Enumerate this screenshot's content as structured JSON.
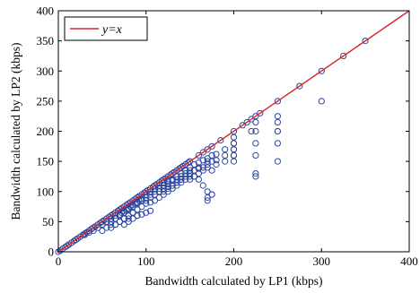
{
  "chart_data": {
    "type": "scatter",
    "title": "",
    "xlabel": "Bandwidth calculated by LP1 (kbps)",
    "ylabel": "Bandwidth calculated by LP2 (kbps)",
    "xlim": [
      0,
      400
    ],
    "ylim": [
      0,
      400
    ],
    "xticks": [
      "0",
      "100",
      "200",
      "300",
      "400"
    ],
    "yticks": [
      "0",
      "50",
      "100",
      "150",
      "200",
      "250",
      "300",
      "350",
      "400"
    ],
    "grid": false,
    "legend": {
      "placement": "top-left",
      "entries": [
        {
          "label": "y=x",
          "label_italic_parts": [
            "y",
            "x"
          ],
          "color": "#d62728",
          "kind": "line"
        }
      ]
    },
    "reference_line": {
      "name": "y=x",
      "color": "#d62728",
      "from": [
        0,
        0
      ],
      "to": [
        400,
        400
      ]
    },
    "marker_color": "#2b45a0",
    "points": {
      "x": [
        0,
        2,
        5,
        8,
        10,
        12,
        15,
        18,
        20,
        22,
        25,
        28,
        30,
        32,
        35,
        38,
        40,
        42,
        45,
        48,
        50,
        52,
        55,
        58,
        60,
        62,
        65,
        68,
        70,
        72,
        75,
        78,
        80,
        82,
        85,
        88,
        90,
        92,
        95,
        98,
        100,
        102,
        105,
        108,
        110,
        112,
        115,
        118,
        120,
        122,
        125,
        128,
        130,
        132,
        135,
        138,
        140,
        142,
        145,
        148,
        150,
        160,
        165,
        170,
        175,
        185,
        200,
        210,
        215,
        220,
        225,
        230,
        250,
        275,
        300,
        325,
        350,
        60,
        65,
        70,
        72,
        75,
        78,
        80,
        82,
        85,
        88,
        90,
        92,
        95,
        60,
        65,
        70,
        75,
        80,
        85,
        90,
        95,
        65,
        70,
        75,
        80,
        85,
        90,
        95,
        30,
        35,
        40,
        45,
        50,
        55,
        60,
        60,
        65,
        70,
        75,
        80,
        85,
        90,
        100,
        105,
        110,
        115,
        120,
        125,
        130,
        135,
        140,
        145,
        150,
        100,
        105,
        110,
        115,
        120,
        125,
        130,
        135,
        140,
        145,
        150,
        100,
        105,
        110,
        115,
        120,
        125,
        130,
        135,
        140,
        145,
        150,
        100,
        105,
        110,
        115,
        120,
        125,
        130,
        135,
        140,
        145,
        150,
        150,
        155,
        160,
        165,
        170,
        175,
        180,
        190,
        200,
        150,
        155,
        160,
        165,
        170,
        175,
        180,
        190,
        200,
        150,
        155,
        160,
        165,
        170,
        175,
        180,
        190,
        200,
        120,
        130,
        140,
        150,
        160,
        170,
        75,
        80,
        85,
        90,
        95,
        100,
        105,
        200,
        200,
        200,
        200,
        200,
        225,
        225,
        225,
        225,
        225,
        250,
        250,
        250,
        250,
        250,
        50,
        55,
        60,
        70,
        80,
        90,
        155,
        160,
        165,
        170,
        175,
        120,
        125,
        130,
        135,
        140,
        170,
        170,
        175,
        220,
        225,
        250,
        300
      ],
      "y": [
        0,
        2,
        5,
        8,
        10,
        12,
        15,
        18,
        20,
        22,
        25,
        28,
        30,
        32,
        35,
        38,
        40,
        42,
        45,
        48,
        50,
        52,
        55,
        58,
        60,
        62,
        65,
        68,
        70,
        72,
        75,
        78,
        80,
        82,
        85,
        88,
        90,
        92,
        95,
        98,
        100,
        102,
        105,
        108,
        110,
        112,
        115,
        118,
        120,
        122,
        125,
        128,
        130,
        132,
        135,
        138,
        140,
        142,
        145,
        148,
        150,
        160,
        165,
        170,
        175,
        185,
        200,
        210,
        215,
        220,
        225,
        230,
        250,
        275,
        300,
        325,
        350,
        55,
        60,
        62,
        65,
        68,
        70,
        72,
        75,
        78,
        80,
        82,
        85,
        88,
        50,
        55,
        60,
        65,
        70,
        75,
        80,
        85,
        45,
        50,
        55,
        60,
        65,
        70,
        75,
        28,
        32,
        35,
        40,
        45,
        50,
        55,
        40,
        45,
        50,
        55,
        60,
        65,
        70,
        95,
        100,
        105,
        110,
        115,
        118,
        120,
        125,
        130,
        135,
        140,
        85,
        90,
        95,
        100,
        105,
        108,
        110,
        115,
        120,
        125,
        130,
        80,
        82,
        85,
        90,
        95,
        100,
        105,
        110,
        115,
        120,
        125,
        90,
        95,
        100,
        105,
        110,
        112,
        118,
        120,
        125,
        130,
        135,
        140,
        145,
        148,
        152,
        155,
        160,
        162,
        170,
        180,
        130,
        135,
        138,
        140,
        145,
        150,
        152,
        160,
        170,
        120,
        125,
        130,
        135,
        140,
        135,
        145,
        150,
        160,
        110,
        120,
        125,
        130,
        140,
        150,
        45,
        50,
        55,
        60,
        62,
        65,
        68,
        190,
        180,
        170,
        160,
        150,
        215,
        200,
        180,
        160,
        130,
        225,
        215,
        200,
        180,
        150,
        35,
        40,
        45,
        50,
        55,
        60,
        125,
        120,
        110,
        100,
        95,
        100,
        105,
        110,
        115,
        120,
        90,
        85,
        95,
        200,
        125,
        200,
        250
      ]
    }
  }
}
